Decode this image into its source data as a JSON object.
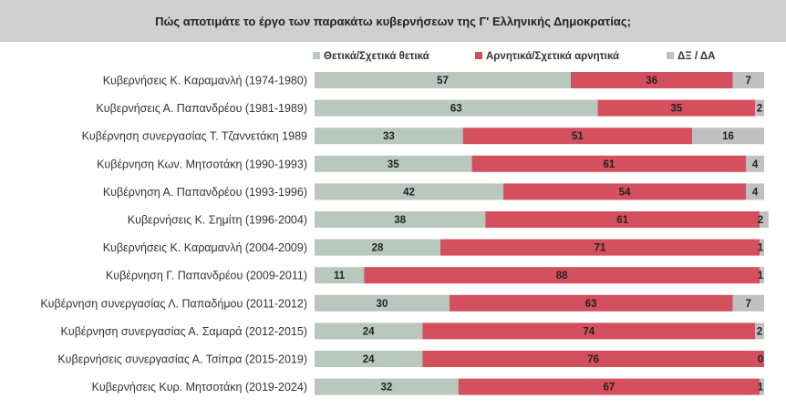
{
  "chart_data": {
    "type": "bar",
    "orientation": "horizontal",
    "stacked": true,
    "title": "Πώς αποτιμάτε το έργο των παρακάτω κυβερνήσεων της Γ' Ελληνικής Δημοκρατίας;",
    "xlim": [
      0,
      100
    ],
    "legend_position": "top",
    "categories": [
      "Κυβερνήσεις Κ. Καραμανλή (1974-1980)",
      "Κυβερνήσεις Α. Παπανδρέου (1981-1989)",
      "Κυβέρνηση συνεργασίας Τ. Τζαννετάκη 1989",
      "Κυβέρνηση Κων. Μητσοτάκη (1990-1993)",
      "Κυβέρνηση Α. Παπανδρέου (1993-1996)",
      "Κυβερνήσεις Κ. Σημίτη (1996-2004)",
      "Κυβερνήσεις Κ. Καραμανλή (2004-2009)",
      "Κυβέρνηση Γ. Παπανδρέου (2009-2011)",
      "Κυβέρνηση συνεργασίας Λ. Παπαδήμου (2011-2012)",
      "Κυβέρνηση συνεργασίας Α. Σαμαρά (2012-2015)",
      "Κυβερνήσεις συνεργασίας Α. Τσίπρα (2015-2019)",
      "Κυβερνήσεις Κυρ. Μητσοτάκη (2019-2024)"
    ],
    "series": [
      {
        "name": "Θετικά/Σχετικά θετικά",
        "color": "#b8c8bd",
        "values": [
          57,
          63,
          33,
          35,
          42,
          38,
          28,
          11,
          30,
          24,
          24,
          32
        ]
      },
      {
        "name": "Αρνητικά/Σχετικά αρνητικά",
        "color": "#d4505f",
        "values": [
          36,
          35,
          51,
          61,
          54,
          61,
          71,
          88,
          63,
          74,
          76,
          67
        ]
      },
      {
        "name": "ΔΞ / ΔΑ",
        "color": "#c0c0c0",
        "values": [
          7,
          2,
          16,
          4,
          4,
          2,
          1,
          1,
          7,
          2,
          0,
          1
        ]
      }
    ]
  }
}
